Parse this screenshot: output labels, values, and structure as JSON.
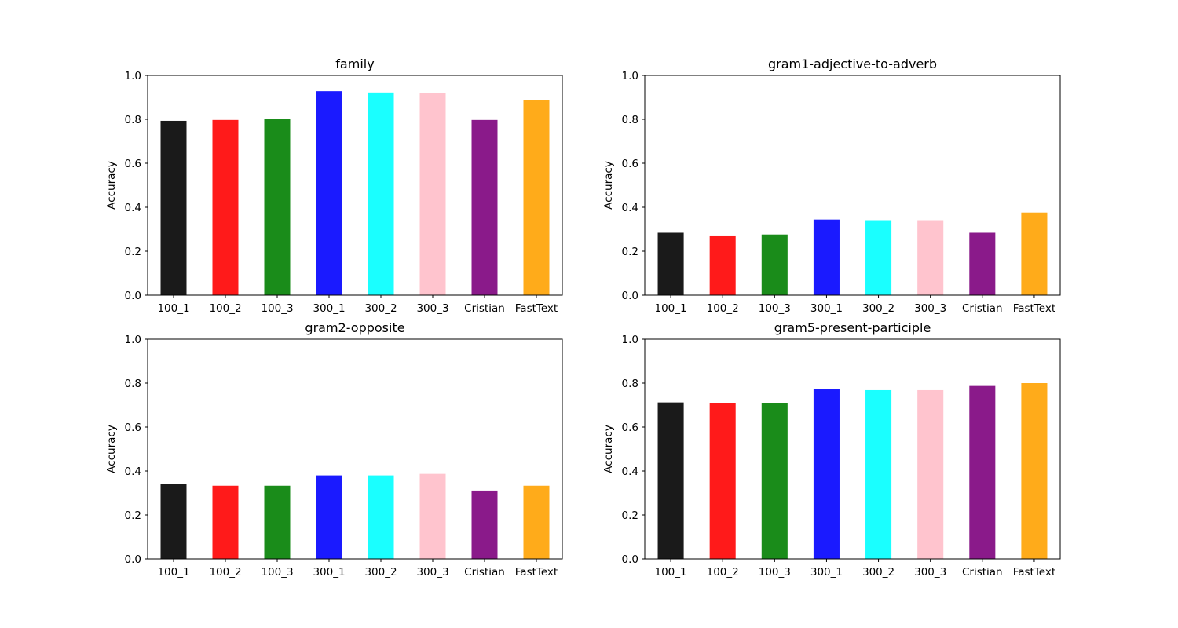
{
  "chart_data": [
    {
      "type": "bar",
      "title": "family",
      "xlabel": "",
      "ylabel": "Accuracy",
      "ylim": [
        0,
        1.0
      ],
      "yticks": [
        "0.0",
        "0.2",
        "0.4",
        "0.6",
        "0.8",
        "1.0"
      ],
      "grid": false,
      "categories": [
        "100_1",
        "100_2",
        "100_3",
        "300_1",
        "300_2",
        "300_3",
        "Cristian",
        "FastText"
      ],
      "values": [
        0.793,
        0.797,
        0.801,
        0.928,
        0.922,
        0.92,
        0.797,
        0.886
      ]
    },
    {
      "type": "bar",
      "title": "gram1-adjective-to-adverb",
      "xlabel": "",
      "ylabel": "Accuracy",
      "ylim": [
        0,
        1.0
      ],
      "yticks": [
        "0.0",
        "0.2",
        "0.4",
        "0.6",
        "0.8",
        "1.0"
      ],
      "grid": false,
      "categories": [
        "100_1",
        "100_2",
        "100_3",
        "300_1",
        "300_2",
        "300_3",
        "Cristian",
        "FastText"
      ],
      "values": [
        0.284,
        0.268,
        0.276,
        0.344,
        0.341,
        0.341,
        0.284,
        0.376
      ]
    },
    {
      "type": "bar",
      "title": "gram2-opposite",
      "xlabel": "",
      "ylabel": "Accuracy",
      "ylim": [
        0,
        1.0
      ],
      "yticks": [
        "0.0",
        "0.2",
        "0.4",
        "0.6",
        "0.8",
        "1.0"
      ],
      "grid": false,
      "categories": [
        "100_1",
        "100_2",
        "100_3",
        "300_1",
        "300_2",
        "300_3",
        "Cristian",
        "FastText"
      ],
      "values": [
        0.34,
        0.333,
        0.333,
        0.38,
        0.38,
        0.387,
        0.311,
        0.333
      ]
    },
    {
      "type": "bar",
      "title": "gram5-present-participle",
      "xlabel": "",
      "ylabel": "Accuracy",
      "ylim": [
        0,
        1.0
      ],
      "yticks": [
        "0.0",
        "0.2",
        "0.4",
        "0.6",
        "0.8",
        "1.0"
      ],
      "grid": false,
      "categories": [
        "100_1",
        "100_2",
        "100_3",
        "300_1",
        "300_2",
        "300_3",
        "Cristian",
        "FastText"
      ],
      "values": [
        0.712,
        0.708,
        0.708,
        0.772,
        0.768,
        0.768,
        0.787,
        0.8
      ]
    }
  ],
  "bar_colors": [
    "#1a1a1a",
    "#ff1a1a",
    "#1a8c1a",
    "#1a1aff",
    "#1affff",
    "#ffc4ce",
    "#8a1a8a",
    "#ffab1a"
  ]
}
